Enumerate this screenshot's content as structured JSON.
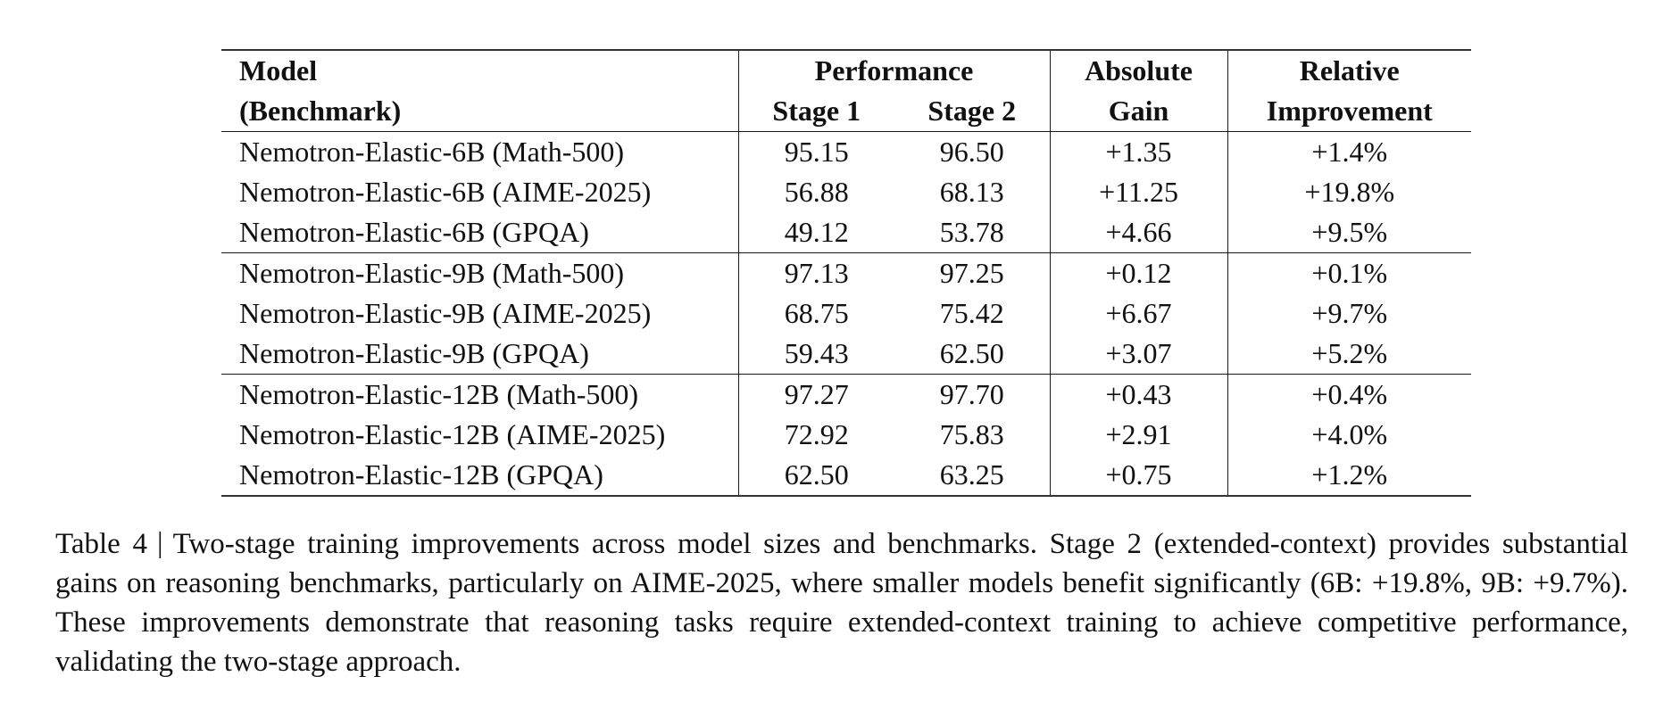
{
  "table": {
    "header": {
      "col1_line1": "Model",
      "col1_line2": "(Benchmark)",
      "perf_group": "Performance",
      "stage1": "Stage 1",
      "stage2": "Stage 2",
      "abs_line1": "Absolute",
      "abs_line2": "Gain",
      "rel_line1": "Relative",
      "rel_line2": "Improvement"
    },
    "groups": [
      {
        "rows": [
          {
            "model": "Nemotron-Elastic-6B (Math-500)",
            "stage1": "95.15",
            "stage2": "96.50",
            "gain": "+1.35",
            "rel": "+1.4%"
          },
          {
            "model": "Nemotron-Elastic-6B (AIME-2025)",
            "stage1": "56.88",
            "stage2": "68.13",
            "gain": "+11.25",
            "rel": "+19.8%"
          },
          {
            "model": "Nemotron-Elastic-6B (GPQA)",
            "stage1": "49.12",
            "stage2": "53.78",
            "gain": "+4.66",
            "rel": "+9.5%"
          }
        ]
      },
      {
        "rows": [
          {
            "model": "Nemotron-Elastic-9B (Math-500)",
            "stage1": "97.13",
            "stage2": "97.25",
            "gain": "+0.12",
            "rel": "+0.1%"
          },
          {
            "model": "Nemotron-Elastic-9B (AIME-2025)",
            "stage1": "68.75",
            "stage2": "75.42",
            "gain": "+6.67",
            "rel": "+9.7%"
          },
          {
            "model": "Nemotron-Elastic-9B (GPQA)",
            "stage1": "59.43",
            "stage2": "62.50",
            "gain": "+3.07",
            "rel": "+5.2%"
          }
        ]
      },
      {
        "rows": [
          {
            "model": "Nemotron-Elastic-12B (Math-500)",
            "stage1": "97.27",
            "stage2": "97.70",
            "gain": "+0.43",
            "rel": "+0.4%"
          },
          {
            "model": "Nemotron-Elastic-12B (AIME-2025)",
            "stage1": "72.92",
            "stage2": "75.83",
            "gain": "+2.91",
            "rel": "+4.0%"
          },
          {
            "model": "Nemotron-Elastic-12B (GPQA)",
            "stage1": "62.50",
            "stage2": "63.25",
            "gain": "+0.75",
            "rel": "+1.2%"
          }
        ]
      }
    ]
  },
  "caption": {
    "label": "Table 4",
    "separator": "|",
    "text": "Two-stage training improvements across model sizes and benchmarks. Stage 2 (extended-context) provides substantial gains on reasoning benchmarks, particularly on AIME-2025, where smaller models benefit significantly (6B: +19.8%, 9B: +9.7%). These improvements demonstrate that reasoning tasks require extended-context training to achieve competitive performance, validating the two-stage approach."
  }
}
